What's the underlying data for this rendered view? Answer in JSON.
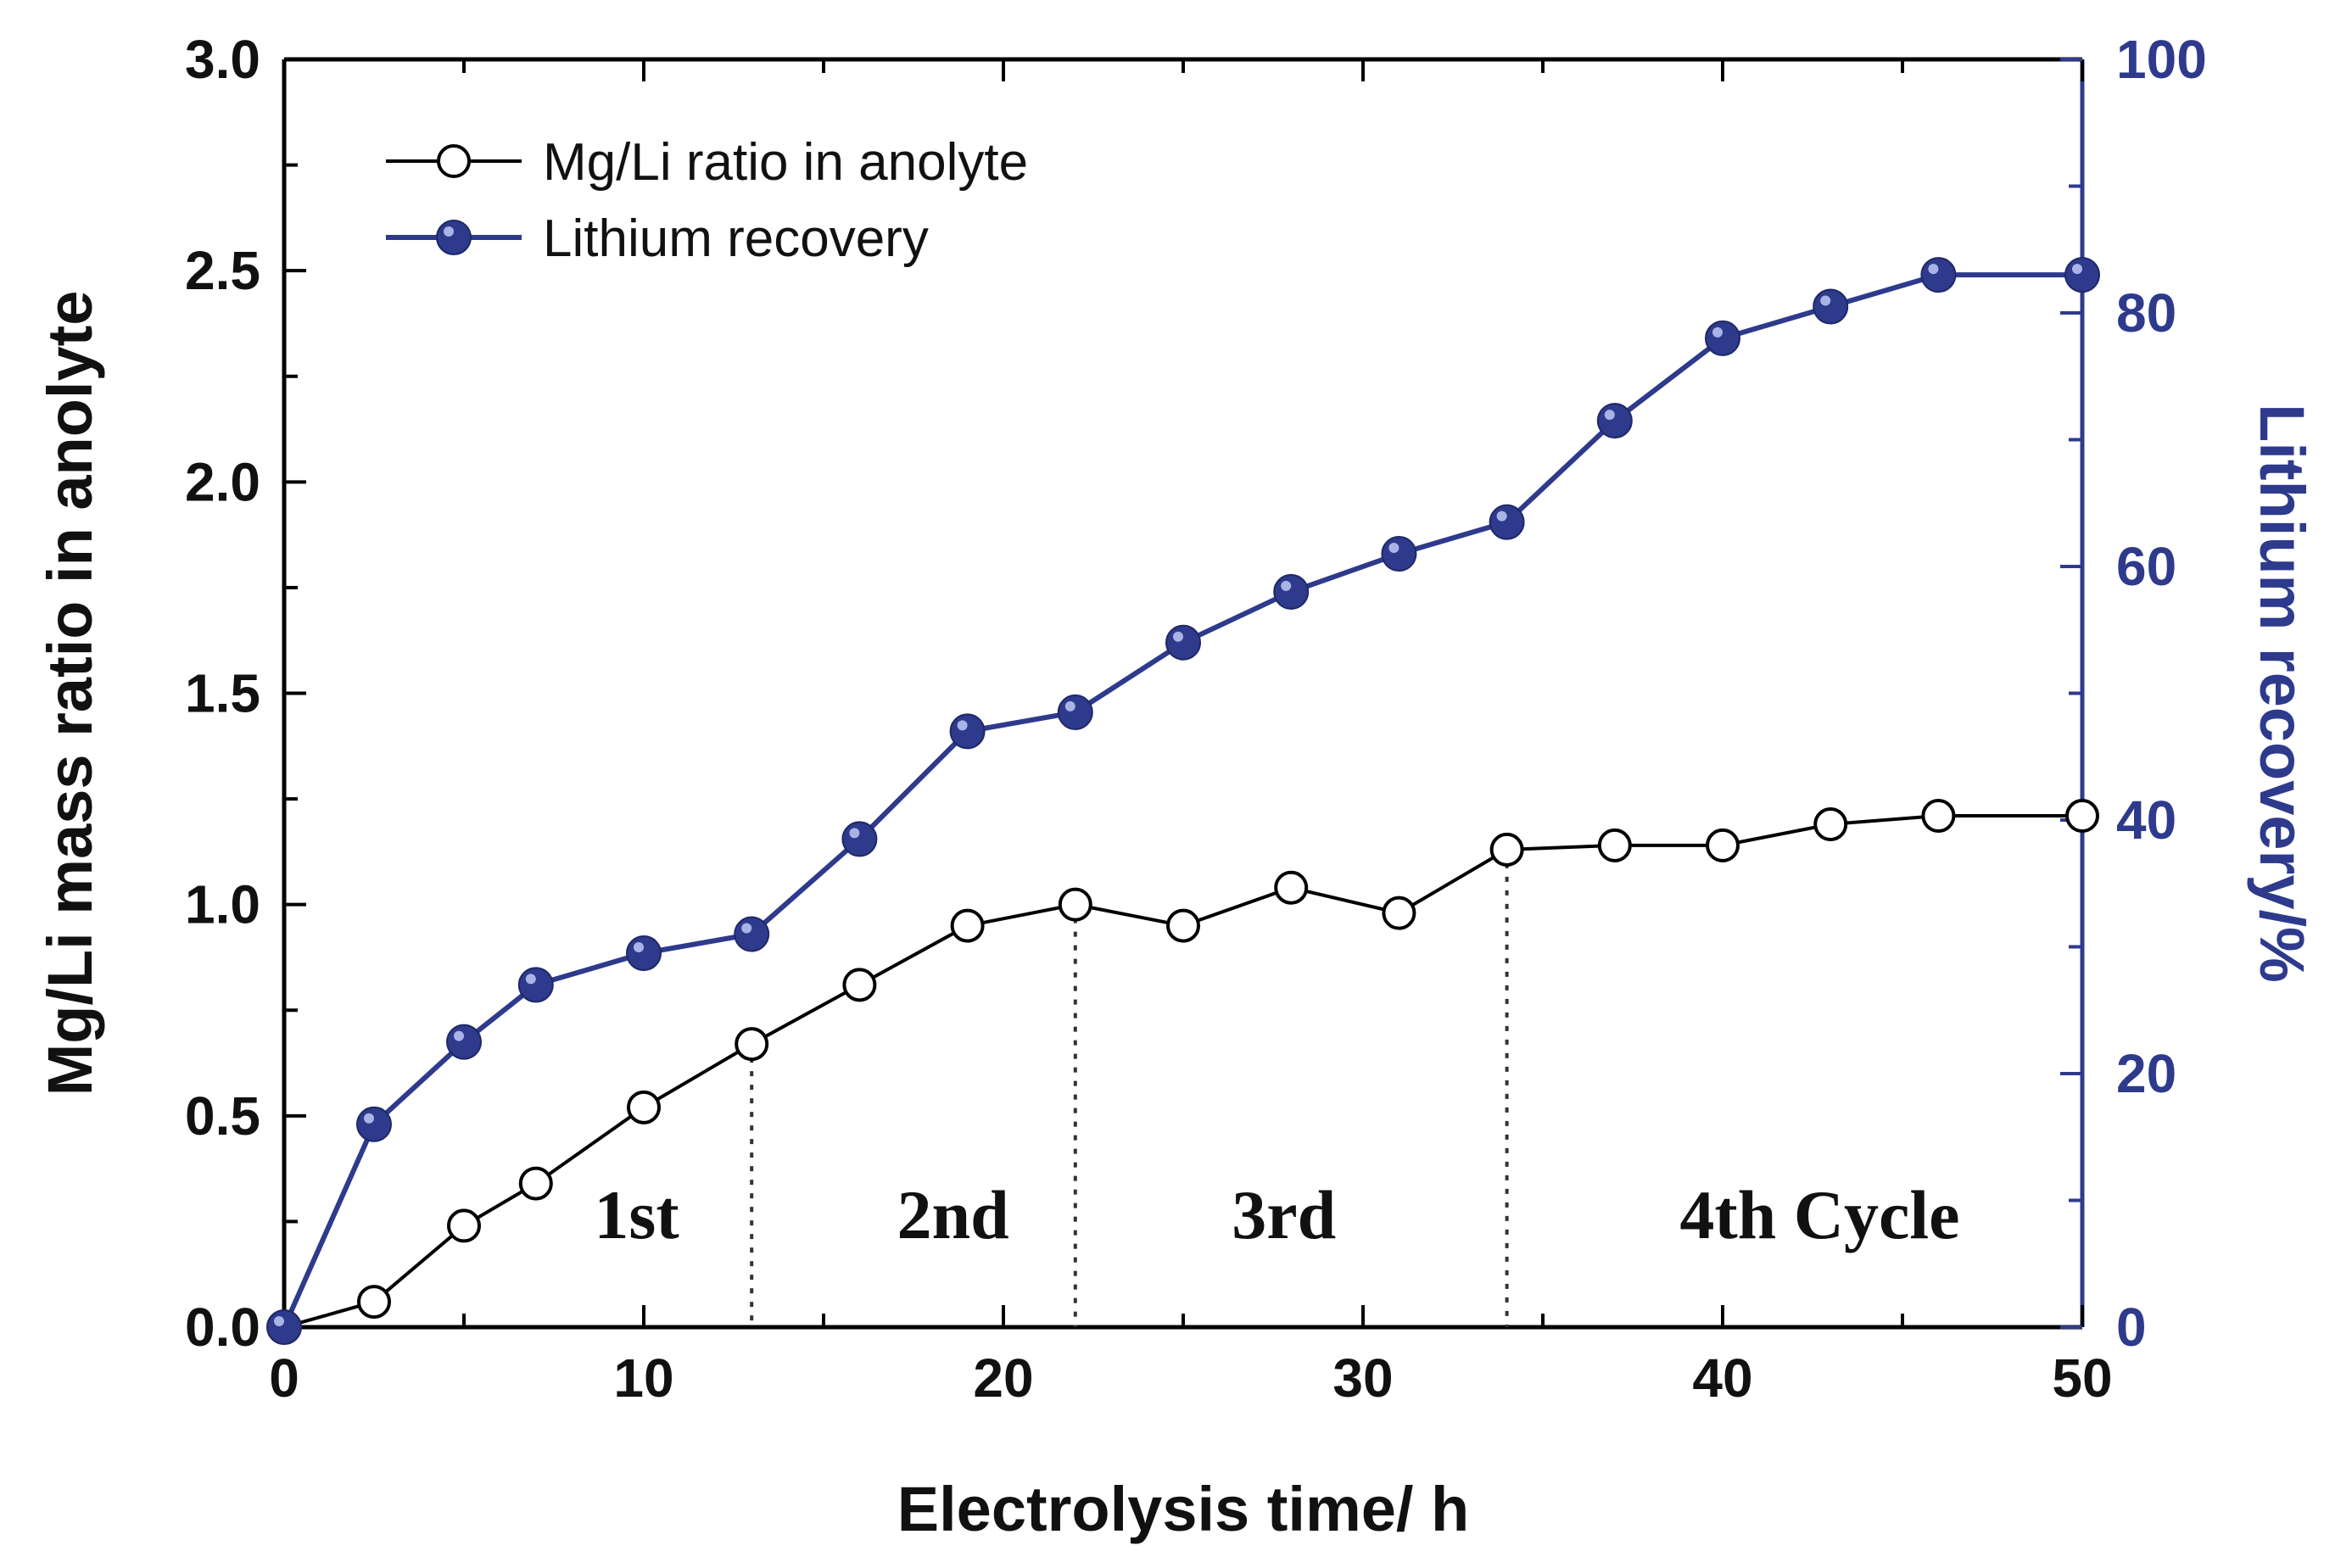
{
  "chart_data": {
    "type": "line",
    "title": "",
    "xlabel": "Electrolysis time/ h",
    "ylabel": "Mg/Li mass ratio in anolyte",
    "y2label": "Lithium recovery/%",
    "xlim": [
      0,
      50
    ],
    "ylim": [
      0,
      3.0
    ],
    "y2lim": [
      0,
      100
    ],
    "xticks": [
      "0",
      "10",
      "20",
      "30",
      "40",
      "50"
    ],
    "yticks": [
      "0.0",
      "0.5",
      "1.0",
      "1.5",
      "2.0",
      "2.5",
      "3.0"
    ],
    "y2ticks": [
      "0",
      "20",
      "40",
      "60",
      "80",
      "100"
    ],
    "legend_position": "top-left",
    "series": [
      {
        "name": "Mg/Li ratio in anolyte",
        "axis": "left",
        "marker": "open-circle",
        "color": "#000000",
        "x": [
          0,
          2.5,
          5,
          7,
          10,
          13,
          16,
          19,
          22,
          25,
          28,
          31,
          34,
          37,
          40,
          43,
          46,
          50
        ],
        "values": [
          0.0,
          0.06,
          0.24,
          0.34,
          0.52,
          0.67,
          0.81,
          0.95,
          1.0,
          0.95,
          1.04,
          0.98,
          1.13,
          1.14,
          1.14,
          1.19,
          1.21,
          1.21
        ]
      },
      {
        "name": "Lithium recovery",
        "axis": "right",
        "marker": "filled-circle",
        "color": "#2e3a8c",
        "x": [
          0,
          2.5,
          5,
          7,
          10,
          13,
          16,
          19,
          22,
          25,
          28,
          31,
          34,
          37,
          40,
          43,
          46,
          50
        ],
        "values": [
          0,
          16,
          22.5,
          27,
          29.5,
          31,
          38.5,
          47,
          48.5,
          54,
          58,
          61,
          63.5,
          71.5,
          78,
          80.5,
          83,
          83
        ]
      }
    ],
    "cycle_dividers": [
      13,
      22,
      34
    ],
    "annotations": [
      {
        "text": "1st",
        "x": 9.8
      },
      {
        "text": "2nd",
        "x": 18.6
      },
      {
        "text": "3rd",
        "x": 27.8
      },
      {
        "text": "4th Cycle",
        "x": 42.7
      }
    ],
    "colors": {
      "left_axis": "#000000",
      "right_axis": "#2e3a8c"
    }
  }
}
